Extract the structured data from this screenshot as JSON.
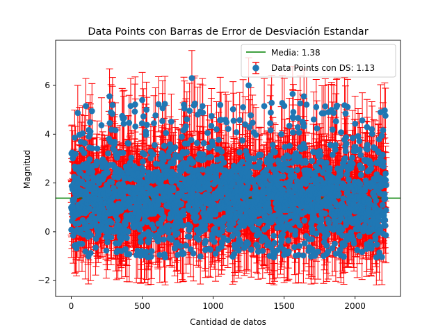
{
  "chart_data": {
    "type": "scatter",
    "title": "Data Points con Barras de Error de Desviación Estandar",
    "xlabel": "Cantidad de datos",
    "ylabel": "Magnitud",
    "xlim": [
      -110,
      2320
    ],
    "ylim": [
      -2.65,
      7.85
    ],
    "xticks": [
      0,
      500,
      1000,
      1500,
      2000
    ],
    "yticks": [
      -2,
      0,
      2,
      4,
      6
    ],
    "grid": false,
    "legend_position": "top-right",
    "n_points": 2220,
    "mean": 1.38,
    "std": 1.13,
    "series": [
      {
        "name": "Media: 1.38",
        "kind": "hline",
        "y": 1.38,
        "color": "#008000"
      },
      {
        "name": "Data Points con DS: 1.13",
        "kind": "errorbar",
        "marker_color": "#1f77b4",
        "errorbar_color": "#ff0000",
        "error": 1.13,
        "x_range": [
          0,
          2219
        ],
        "y_min_observed": -1.05,
        "y_max_observed": 6.3,
        "highlight_points": [
          {
            "x": 850,
            "y": 6.3
          },
          {
            "x": 1250,
            "y": 6.0
          },
          {
            "x": 1560,
            "y": 5.65
          },
          {
            "x": 1640,
            "y": 5.55
          },
          {
            "x": 270,
            "y": 5.55
          },
          {
            "x": 500,
            "y": 5.4
          },
          {
            "x": 1360,
            "y": 5.15
          },
          {
            "x": 1050,
            "y": 5.2
          },
          {
            "x": 2180,
            "y": 4.9
          },
          {
            "x": 1480,
            "y": 4.0
          },
          {
            "x": 2150,
            "y": -1.05
          },
          {
            "x": 1500,
            "y": -0.95
          },
          {
            "x": 750,
            "y": -0.95
          },
          {
            "x": 30,
            "y": -0.55
          }
        ]
      }
    ]
  }
}
